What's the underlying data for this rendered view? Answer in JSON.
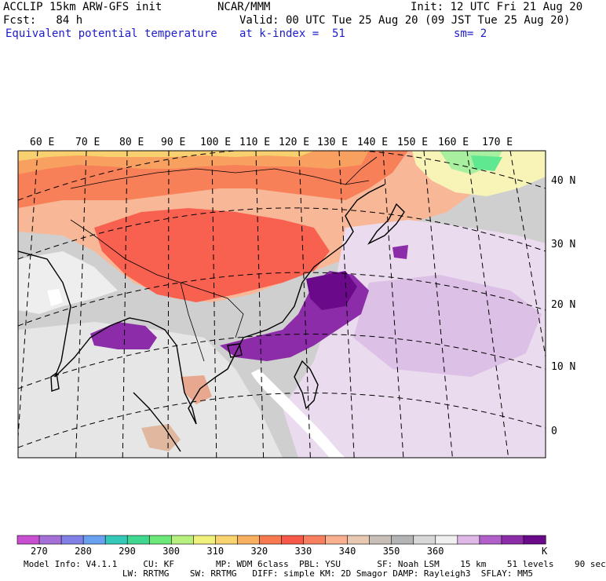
{
  "header": {
    "model": "ACCLIP 15km ARW-GFS init",
    "org": "NCAR/MMM",
    "init": "Init: 12 UTC Fri 21 Aug 20",
    "fcst": "Fcst:   84 h",
    "valid": "Valid: 00 UTC Tue 25 Aug 20 (09 JST Tue 25 Aug 20)",
    "field": "Equivalent potential temperature",
    "level": "at k-index =  51",
    "smooth": "sm= 2"
  },
  "map": {
    "lon_labels": [
      "60 E",
      "70 E",
      "80 E",
      "90 E",
      "100 E",
      "110 E",
      "120 E",
      "130 E",
      "140 E",
      "150 E",
      "160 E",
      "170 E"
    ],
    "lat_labels": [
      "40 N",
      "30 N",
      "20 N",
      "10 N",
      "0"
    ]
  },
  "colorbar": {
    "unit": "K",
    "ticks": [
      "270",
      "280",
      "290",
      "300",
      "310",
      "320",
      "330",
      "340",
      "350",
      "360"
    ],
    "colors": [
      "#c84fd0",
      "#a470d8",
      "#8080e6",
      "#6aa0f0",
      "#34c8b8",
      "#40d890",
      "#6ce878",
      "#b8f080",
      "#f0f07c",
      "#f8d470",
      "#f8b060",
      "#f87850",
      "#f85848",
      "#f88060",
      "#f8b090",
      "#e8c8b0",
      "#c8c0b8",
      "#b4b4b4",
      "#d8d8d8",
      "#f0f0f0",
      "#e0b8e8",
      "#b060c8",
      "#8c2ca8",
      "#6a0a8a"
    ]
  },
  "footer": {
    "line1": "Model Info: V4.1.1     CU: KF        MP: WDM 6class  PBL: YSU       SF: Noah LSM    15 km    51 levels    90 sec",
    "line2": "                   LW: RRTMG    SW: RRTMG   DIFF: simple KM: 2D Smagor DAMP: Rayleigh3  SFLAY: MM5"
  }
}
